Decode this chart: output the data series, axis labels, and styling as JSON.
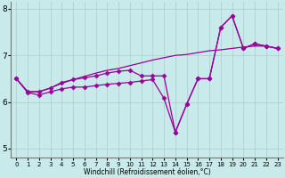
{
  "xlabel": "Windchill (Refroidissement éolien,°C)",
  "background_color": "#c8eaea",
  "line_color": "#990099",
  "x_values": [
    0,
    1,
    2,
    3,
    4,
    5,
    6,
    7,
    8,
    9,
    10,
    11,
    12,
    13,
    14,
    15,
    16,
    17,
    18,
    19,
    20,
    21,
    22,
    23
  ],
  "series1_nomarker": [
    6.5,
    6.22,
    6.22,
    6.3,
    6.4,
    6.48,
    6.55,
    6.62,
    6.68,
    6.72,
    6.78,
    6.84,
    6.9,
    6.95,
    7.0,
    7.02,
    7.06,
    7.1,
    7.12,
    7.15,
    7.18,
    7.2,
    7.2,
    7.15
  ],
  "series2_marker": [
    6.5,
    6.22,
    6.22,
    6.3,
    6.42,
    6.48,
    6.52,
    6.56,
    6.62,
    6.66,
    6.68,
    6.56,
    6.56,
    6.56,
    5.35,
    5.95,
    6.5,
    6.5,
    7.6,
    7.85,
    7.15,
    7.25,
    7.2,
    7.15
  ],
  "series3_marker": [
    6.5,
    6.2,
    6.15,
    6.22,
    6.28,
    6.32,
    6.32,
    6.35,
    6.38,
    6.4,
    6.42,
    6.45,
    6.48,
    6.08,
    5.35,
    5.95,
    6.5,
    6.5,
    7.6,
    7.85,
    7.15,
    7.25,
    7.2,
    7.15
  ],
  "ylim": [
    4.8,
    8.15
  ],
  "xlim": [
    -0.5,
    23.5
  ],
  "yticks": [
    5,
    6,
    7,
    8
  ],
  "xticks": [
    0,
    1,
    2,
    3,
    4,
    5,
    6,
    7,
    8,
    9,
    10,
    11,
    12,
    13,
    14,
    15,
    16,
    17,
    18,
    19,
    20,
    21,
    22,
    23
  ]
}
